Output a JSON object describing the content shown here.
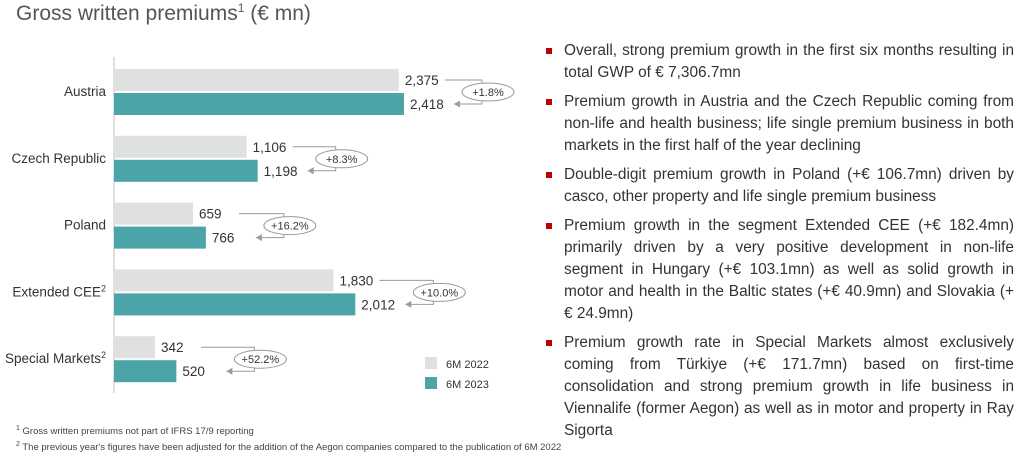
{
  "title": {
    "text": "Gross written premiums",
    "footnote_ref": "1",
    "unit": " (€ mn)"
  },
  "colors": {
    "prior": "#dfe1e1",
    "current": "#4aa4a8",
    "bullet": "#c00000"
  },
  "chart_data": {
    "type": "bar",
    "orientation": "horizontal",
    "categories": [
      "Austria",
      "Czech Republic",
      "Poland",
      "Extended CEE",
      "Special Markets"
    ],
    "category_footnotes": [
      "",
      "",
      "",
      "2",
      "2"
    ],
    "series": [
      {
        "name": "6M 2022",
        "values": [
          2375,
          1106,
          659,
          1830,
          342
        ],
        "labels": [
          "2,375",
          "1,106",
          "659",
          "1,830",
          "342"
        ]
      },
      {
        "name": "6M 2023",
        "values": [
          2418,
          1198,
          766,
          2012,
          520
        ],
        "labels": [
          "2,418",
          "1,198",
          "766",
          "2,012",
          "520"
        ]
      }
    ],
    "changes": [
      "+1.8%",
      "+8.3%",
      "+16.2%",
      "+10.0%",
      "+52.2%"
    ],
    "xlim": [
      0,
      2600
    ],
    "legend_position": "bottom-right"
  },
  "bullets": [
    "Overall, strong premium growth in the first six months resulting in total GWP of € 7,306.7mn",
    "Premium growth in Austria and the Czech Republic coming from non-life and health business; life single premium business in both markets in the first half of the year declining",
    "Double-digit premium growth in Poland (+€ 106.7mn) driven by casco, other property and life single premium business",
    "Premium growth in the segment Extended CEE (+€ 182.4mn) primarily driven by a very positive development in non-life segment in Hungary (+€ 103.1mn) as well as solid growth in motor and health in the Baltic states (+€ 40.9mn) and Slovakia (+€ 24.9mn)",
    "Premium growth rate in Special Markets almost exclusively coming from Türkiye (+€ 171.7mn) based on first-time consolidation and strong premium growth in life business in Viennalife (former Aegon) as well as in motor and property in Ray Sigorta"
  ],
  "footnotes": [
    {
      "mark": "1",
      "text": " Gross written premiums not part of IFRS 17/9 reporting"
    },
    {
      "mark": "2",
      "text": " The previous year's figures have been adjusted for the addition of the Aegon companies compared to the publication of 6M 2022"
    }
  ]
}
